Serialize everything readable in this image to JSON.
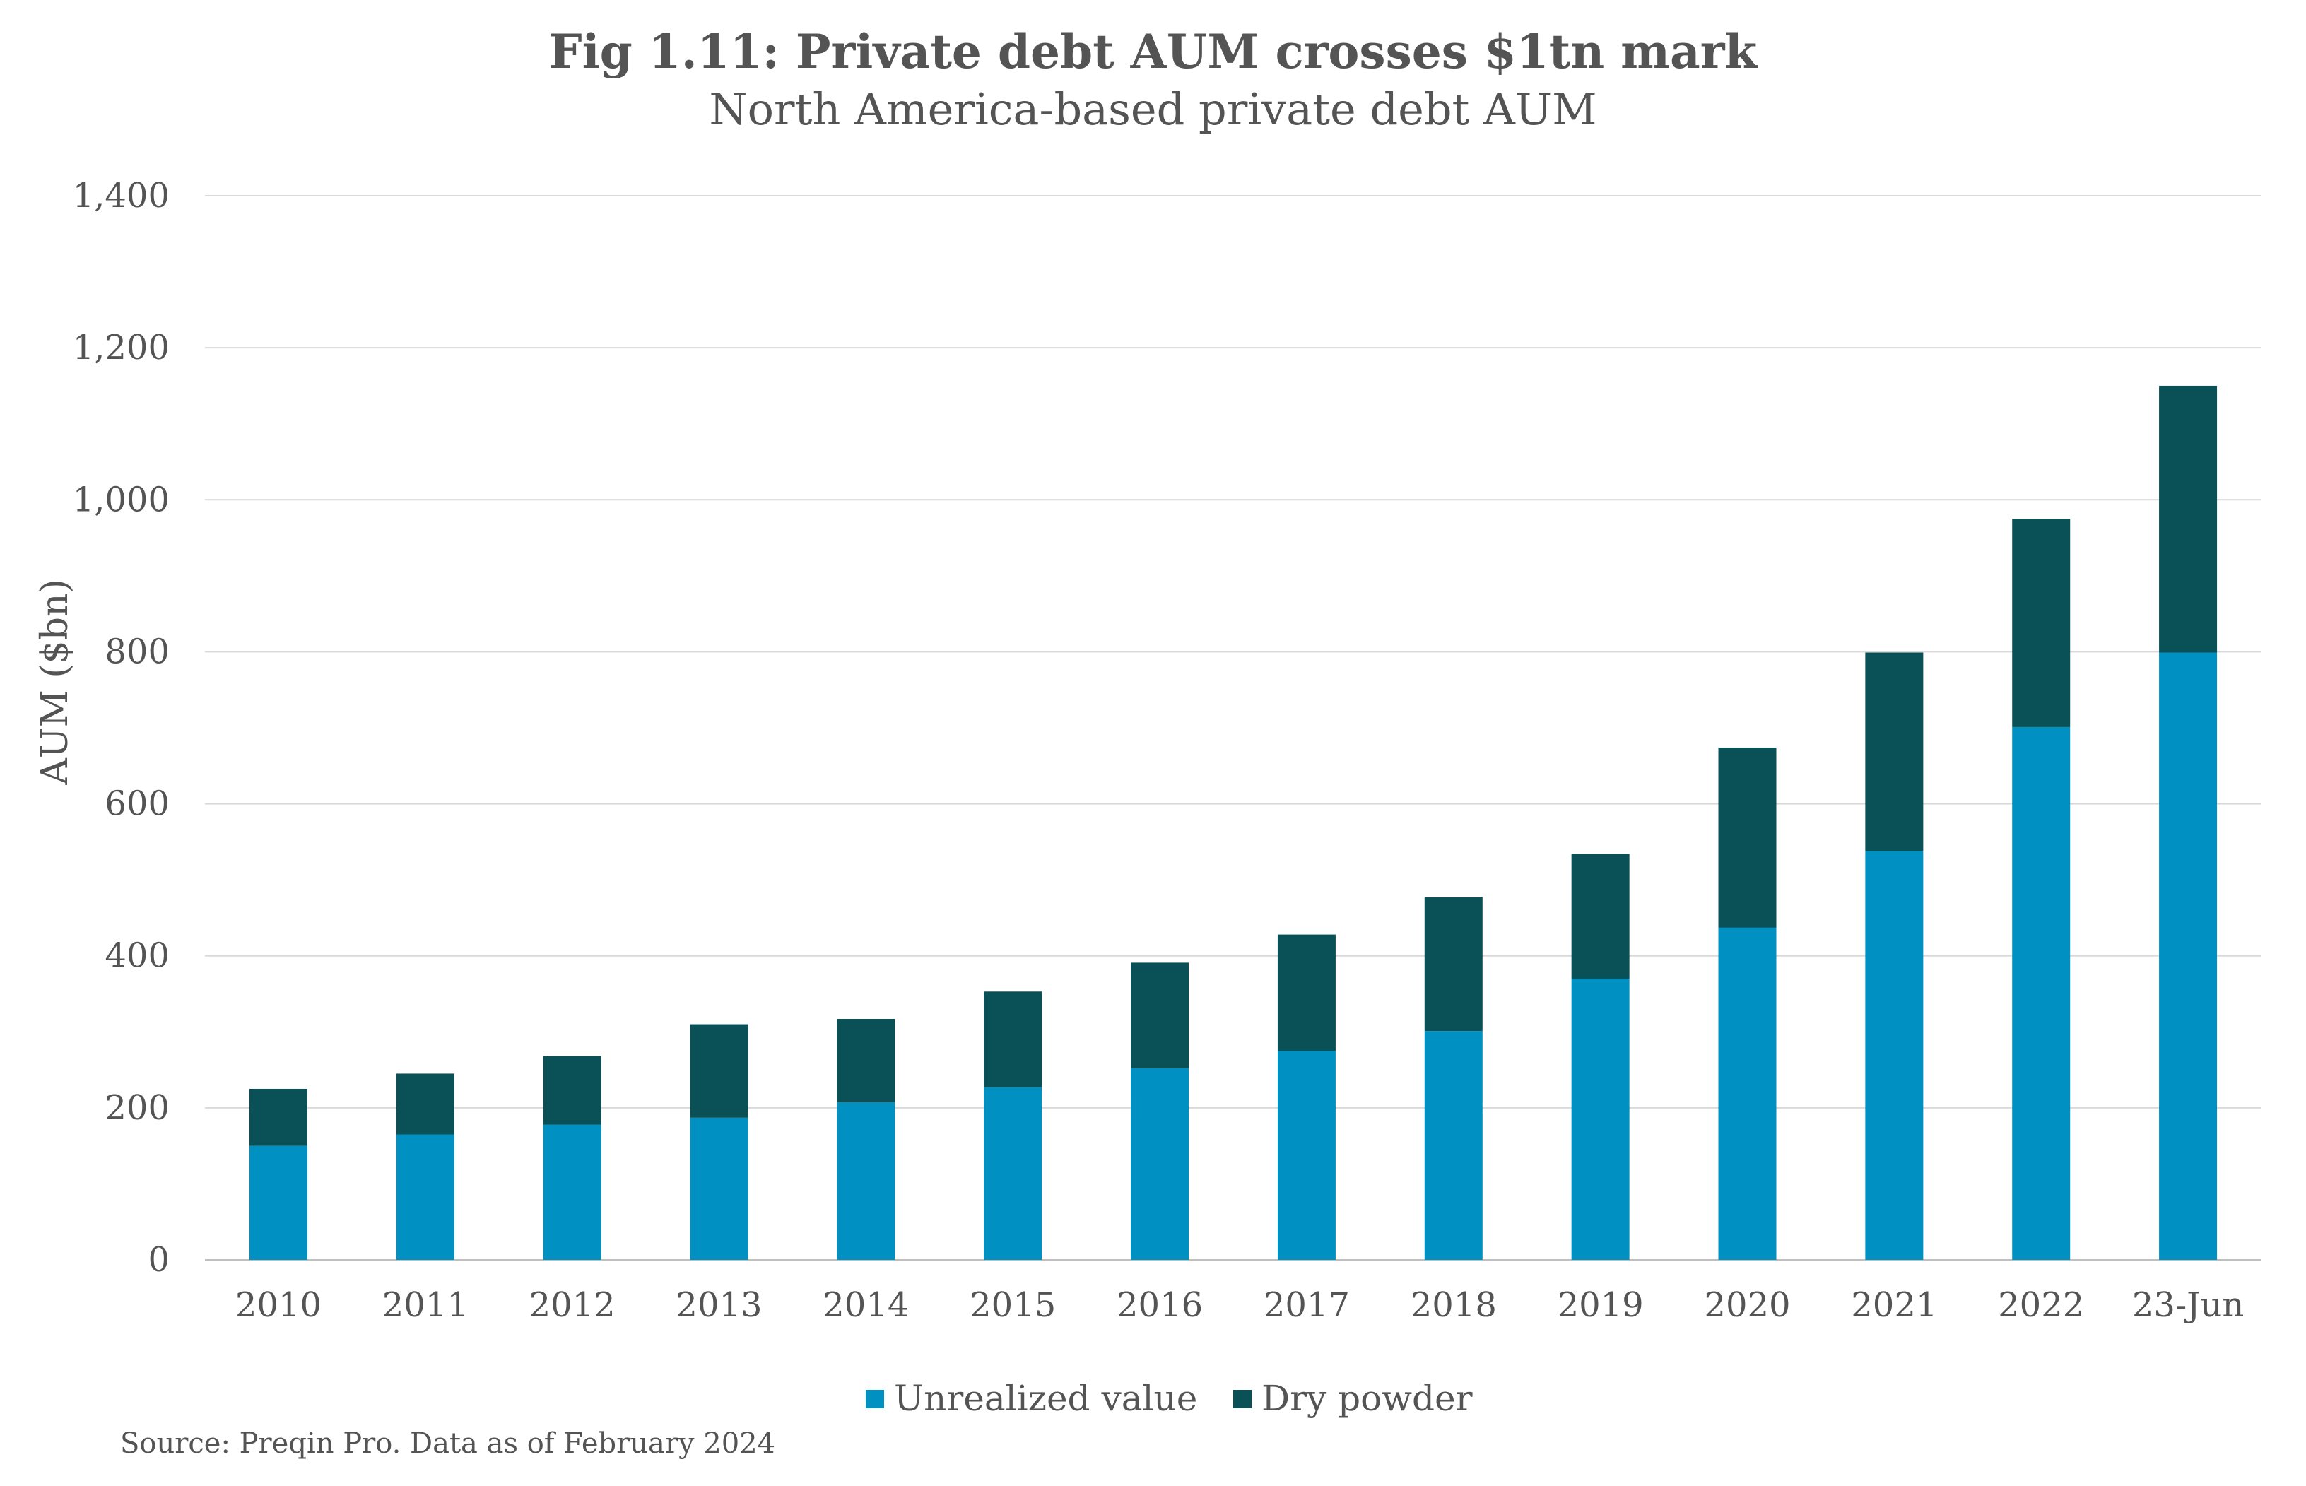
{
  "chart_data": {
    "type": "bar",
    "stacked": true,
    "title": "Fig 1.11: Private debt AUM crosses $1tn mark",
    "subtitle": "North America-based private debt AUM",
    "ylabel": "AUM ($bn)",
    "ylim": [
      0,
      1400
    ],
    "yticks": [
      0,
      200,
      400,
      600,
      800,
      1000,
      1200,
      1400
    ],
    "ytick_labels": [
      "0",
      "200",
      "400",
      "600",
      "800",
      "1,000",
      "1,200",
      "1,400"
    ],
    "grid": true,
    "legend_position": "bottom",
    "categories": [
      "2010",
      "2011",
      "2012",
      "2013",
      "2014",
      "2015",
      "2016",
      "2017",
      "2018",
      "2019",
      "2020",
      "2021",
      "2022",
      "23-Jun"
    ],
    "series": [
      {
        "name": "Unrealized value",
        "color": "#0090C1",
        "values": [
          150,
          165,
          178,
          187,
          207,
          227,
          252,
          275,
          301,
          370,
          437,
          538,
          701,
          799
        ]
      },
      {
        "name": "Dry powder",
        "color": "#0A5057",
        "values": [
          75,
          80,
          90,
          123,
          110,
          126,
          139,
          153,
          176,
          164,
          237,
          261,
          274,
          351
        ]
      }
    ],
    "source": "Source: Preqin Pro. Data as of February 2024"
  }
}
